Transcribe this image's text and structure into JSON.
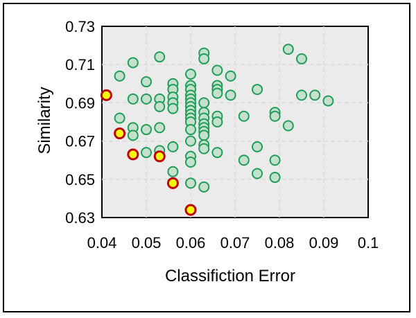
{
  "chart_data": {
    "type": "scatter",
    "title": "",
    "xlabel": "Classifiction Error",
    "ylabel": "Similarity",
    "xlim": [
      0.04,
      0.1
    ],
    "ylim": [
      0.63,
      0.73
    ],
    "xticks": [
      "0.04",
      "0.05",
      "0.06",
      "0.07",
      "0.08",
      "0.09",
      "0.1"
    ],
    "yticks": [
      "0.63",
      "0.65",
      "0.67",
      "0.69",
      "0.71",
      "0.73"
    ],
    "grid": true,
    "plot_background": "#ebebeb",
    "grid_color": "#d9d9d9",
    "series": [
      {
        "marker_fill": "#c5e0cc",
        "marker_edge": "#1e9e57",
        "points": [
          [
            0.044,
            0.682
          ],
          [
            0.044,
            0.704
          ],
          [
            0.047,
            0.711
          ],
          [
            0.047,
            0.692
          ],
          [
            0.047,
            0.677
          ],
          [
            0.047,
            0.673
          ],
          [
            0.05,
            0.701
          ],
          [
            0.05,
            0.692
          ],
          [
            0.05,
            0.676
          ],
          [
            0.05,
            0.664
          ],
          [
            0.053,
            0.714
          ],
          [
            0.053,
            0.692
          ],
          [
            0.053,
            0.688
          ],
          [
            0.053,
            0.677
          ],
          [
            0.053,
            0.665
          ],
          [
            0.056,
            0.7
          ],
          [
            0.056,
            0.697
          ],
          [
            0.056,
            0.693
          ],
          [
            0.056,
            0.69
          ],
          [
            0.056,
            0.687
          ],
          [
            0.056,
            0.667
          ],
          [
            0.056,
            0.654
          ],
          [
            0.06,
            0.705
          ],
          [
            0.06,
            0.699
          ],
          [
            0.06,
            0.697
          ],
          [
            0.06,
            0.694
          ],
          [
            0.06,
            0.692
          ],
          [
            0.06,
            0.69
          ],
          [
            0.06,
            0.688
          ],
          [
            0.06,
            0.686
          ],
          [
            0.06,
            0.684
          ],
          [
            0.06,
            0.682
          ],
          [
            0.06,
            0.68
          ],
          [
            0.06,
            0.676
          ],
          [
            0.06,
            0.67
          ],
          [
            0.06,
            0.662
          ],
          [
            0.06,
            0.659
          ],
          [
            0.06,
            0.648
          ],
          [
            0.063,
            0.716
          ],
          [
            0.063,
            0.713
          ],
          [
            0.063,
            0.69
          ],
          [
            0.063,
            0.685
          ],
          [
            0.063,
            0.682
          ],
          [
            0.063,
            0.679
          ],
          [
            0.063,
            0.677
          ],
          [
            0.063,
            0.675
          ],
          [
            0.063,
            0.673
          ],
          [
            0.063,
            0.668
          ],
          [
            0.063,
            0.666
          ],
          [
            0.063,
            0.646
          ],
          [
            0.066,
            0.707
          ],
          [
            0.066,
            0.699
          ],
          [
            0.066,
            0.697
          ],
          [
            0.066,
            0.695
          ],
          [
            0.066,
            0.683
          ],
          [
            0.066,
            0.68
          ],
          [
            0.066,
            0.664
          ],
          [
            0.069,
            0.704
          ],
          [
            0.069,
            0.694
          ],
          [
            0.072,
            0.683
          ],
          [
            0.072,
            0.66
          ],
          [
            0.075,
            0.697
          ],
          [
            0.075,
            0.667
          ],
          [
            0.075,
            0.653
          ],
          [
            0.079,
            0.685
          ],
          [
            0.079,
            0.683
          ],
          [
            0.079,
            0.66
          ],
          [
            0.079,
            0.651
          ],
          [
            0.082,
            0.718
          ],
          [
            0.082,
            0.678
          ],
          [
            0.085,
            0.713
          ],
          [
            0.085,
            0.694
          ],
          [
            0.088,
            0.694
          ],
          [
            0.091,
            0.691
          ]
        ]
      },
      {
        "marker_fill": "#ffff00",
        "marker_edge": "#c00000",
        "points": [
          [
            0.041,
            0.694
          ],
          [
            0.044,
            0.674
          ],
          [
            0.047,
            0.663
          ],
          [
            0.053,
            0.662
          ],
          [
            0.056,
            0.648
          ],
          [
            0.06,
            0.634
          ]
        ]
      }
    ]
  }
}
